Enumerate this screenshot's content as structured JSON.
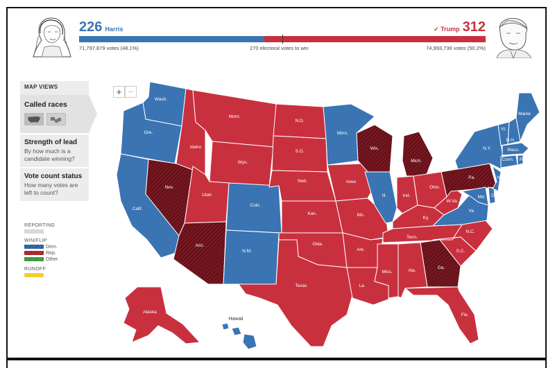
{
  "header": {
    "left": {
      "ev": "226",
      "name": "Harris",
      "votes": "71,797,879 votes (48.1%)",
      "color": "#3a74b3"
    },
    "right": {
      "ev": "312",
      "name": "✓ Trump",
      "votes": "74,993,736 votes (50.2%)",
      "color": "#c9303e"
    },
    "to_win": "270 electoral votes to win",
    "dem_share": 0.456
  },
  "panel": {
    "title": "MAP VIEWS",
    "called": "Called races",
    "strength_title": "Strength of lead",
    "strength_sub": "By how much is a candidate winning?",
    "count_title": "Vote count status",
    "count_sub": "How many votes are left to count?"
  },
  "legend": {
    "reporting": "REPORTING",
    "winflip": "WIN/FLIP",
    "dem": "Dem.",
    "rep": "Rep.",
    "other": "Other",
    "runoff": "RUNOFF"
  },
  "zoom": {
    "plus": "+",
    "minus": "−"
  },
  "map": {
    "colors": {
      "dem": "#3a74b3",
      "rep": "#c9303e",
      "rep_flip": "#7a1822"
    },
    "labels": {
      "wash": "Wash.",
      "ore": "Ore.",
      "calif": "Calif.",
      "idaho": "Idaho",
      "nev": "Nev.",
      "mont": "Mont.",
      "wyo": "Wyo.",
      "utah": "Utah",
      "ariz": "Ariz.",
      "colo": "Colo.",
      "nm": "N.M.",
      "nd": "N.D.",
      "sd": "S.D.",
      "neb": "Neb.",
      "kan": "Kan.",
      "okla": "Okla.",
      "texas": "Texas",
      "minn": "Minn.",
      "iowa": "Iowa",
      "mo": "Mo.",
      "ark": "Ark.",
      "la": "La.",
      "wis": "Wis.",
      "ill": "Ill.",
      "mich": "Mich.",
      "ind": "Ind.",
      "ohio": "Ohio",
      "ky": "Ky.",
      "tenn": "Tenn.",
      "miss": "Miss.",
      "ala": "Ala.",
      "ga": "Ga.",
      "fla": "Fla.",
      "sc": "S.C.",
      "nc": "N.C.",
      "va": "Va.",
      "wva": "W.Va.",
      "pa": "Pa.",
      "ny": "N.Y.",
      "vt": "Vt.",
      "nh": "N.H.",
      "maine": "Maine",
      "mass": "Mass.",
      "conn": "Conn.",
      "ri": "R.I.",
      "nj": "N.J.",
      "del": "Del.",
      "md": "Md.",
      "alaska": "Alaska",
      "hawaii": "Hawaii"
    }
  }
}
